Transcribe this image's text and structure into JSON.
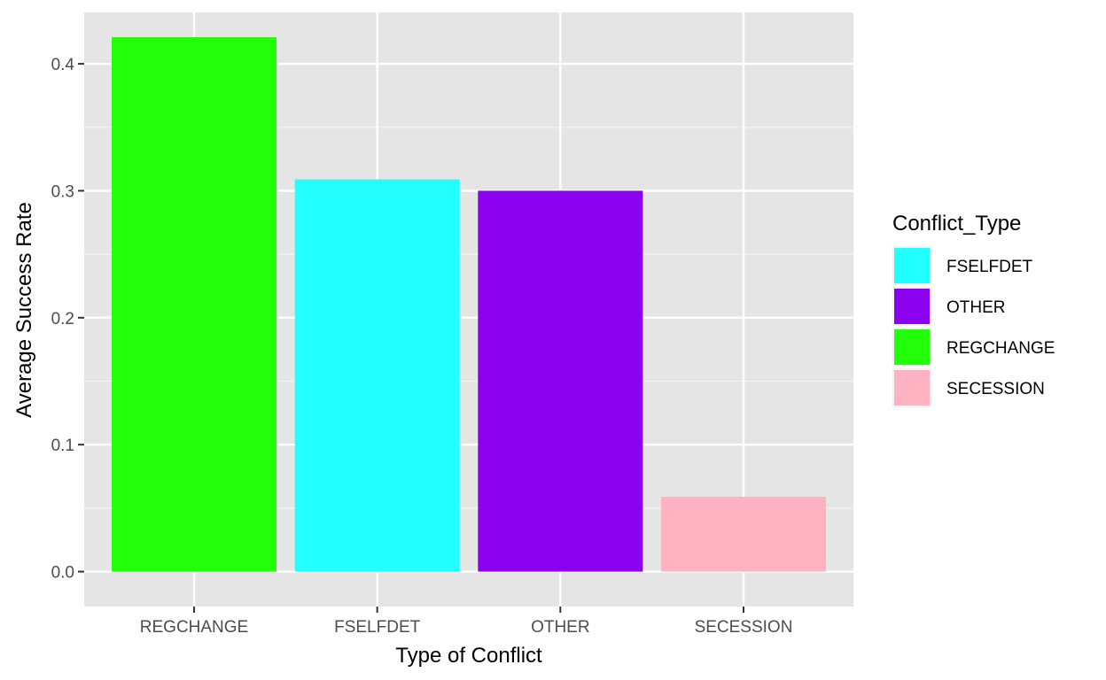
{
  "chart_data": {
    "type": "bar",
    "title": "",
    "xlabel": "Type of Conflict",
    "ylabel": "Average Success Rate",
    "categories": [
      "REGCHANGE",
      "FSELFDET",
      "OTHER",
      "SECESSION"
    ],
    "values": [
      0.421,
      0.309,
      0.3,
      0.059
    ],
    "bar_colors": [
      "#22FF08",
      "#22FFFF",
      "#8B00EE",
      "#FFB3C1"
    ],
    "ylim": [
      -0.0275,
      0.4405
    ],
    "yticks": [
      0.0,
      0.1,
      0.2,
      0.3,
      0.4
    ],
    "ytick_labels": [
      "0.0",
      "0.1",
      "0.2",
      "0.3",
      "0.4"
    ],
    "grid": true,
    "panel_background": "#E5E5E5",
    "legend": {
      "title": "Conflict_Type",
      "placement": "right",
      "items": [
        {
          "label": "FSELFDET",
          "color": "#22FFFF"
        },
        {
          "label": "OTHER",
          "color": "#8B00EE"
        },
        {
          "label": "REGCHANGE",
          "color": "#22FF08"
        },
        {
          "label": "SECESSION",
          "color": "#FFB3C1"
        }
      ]
    }
  }
}
